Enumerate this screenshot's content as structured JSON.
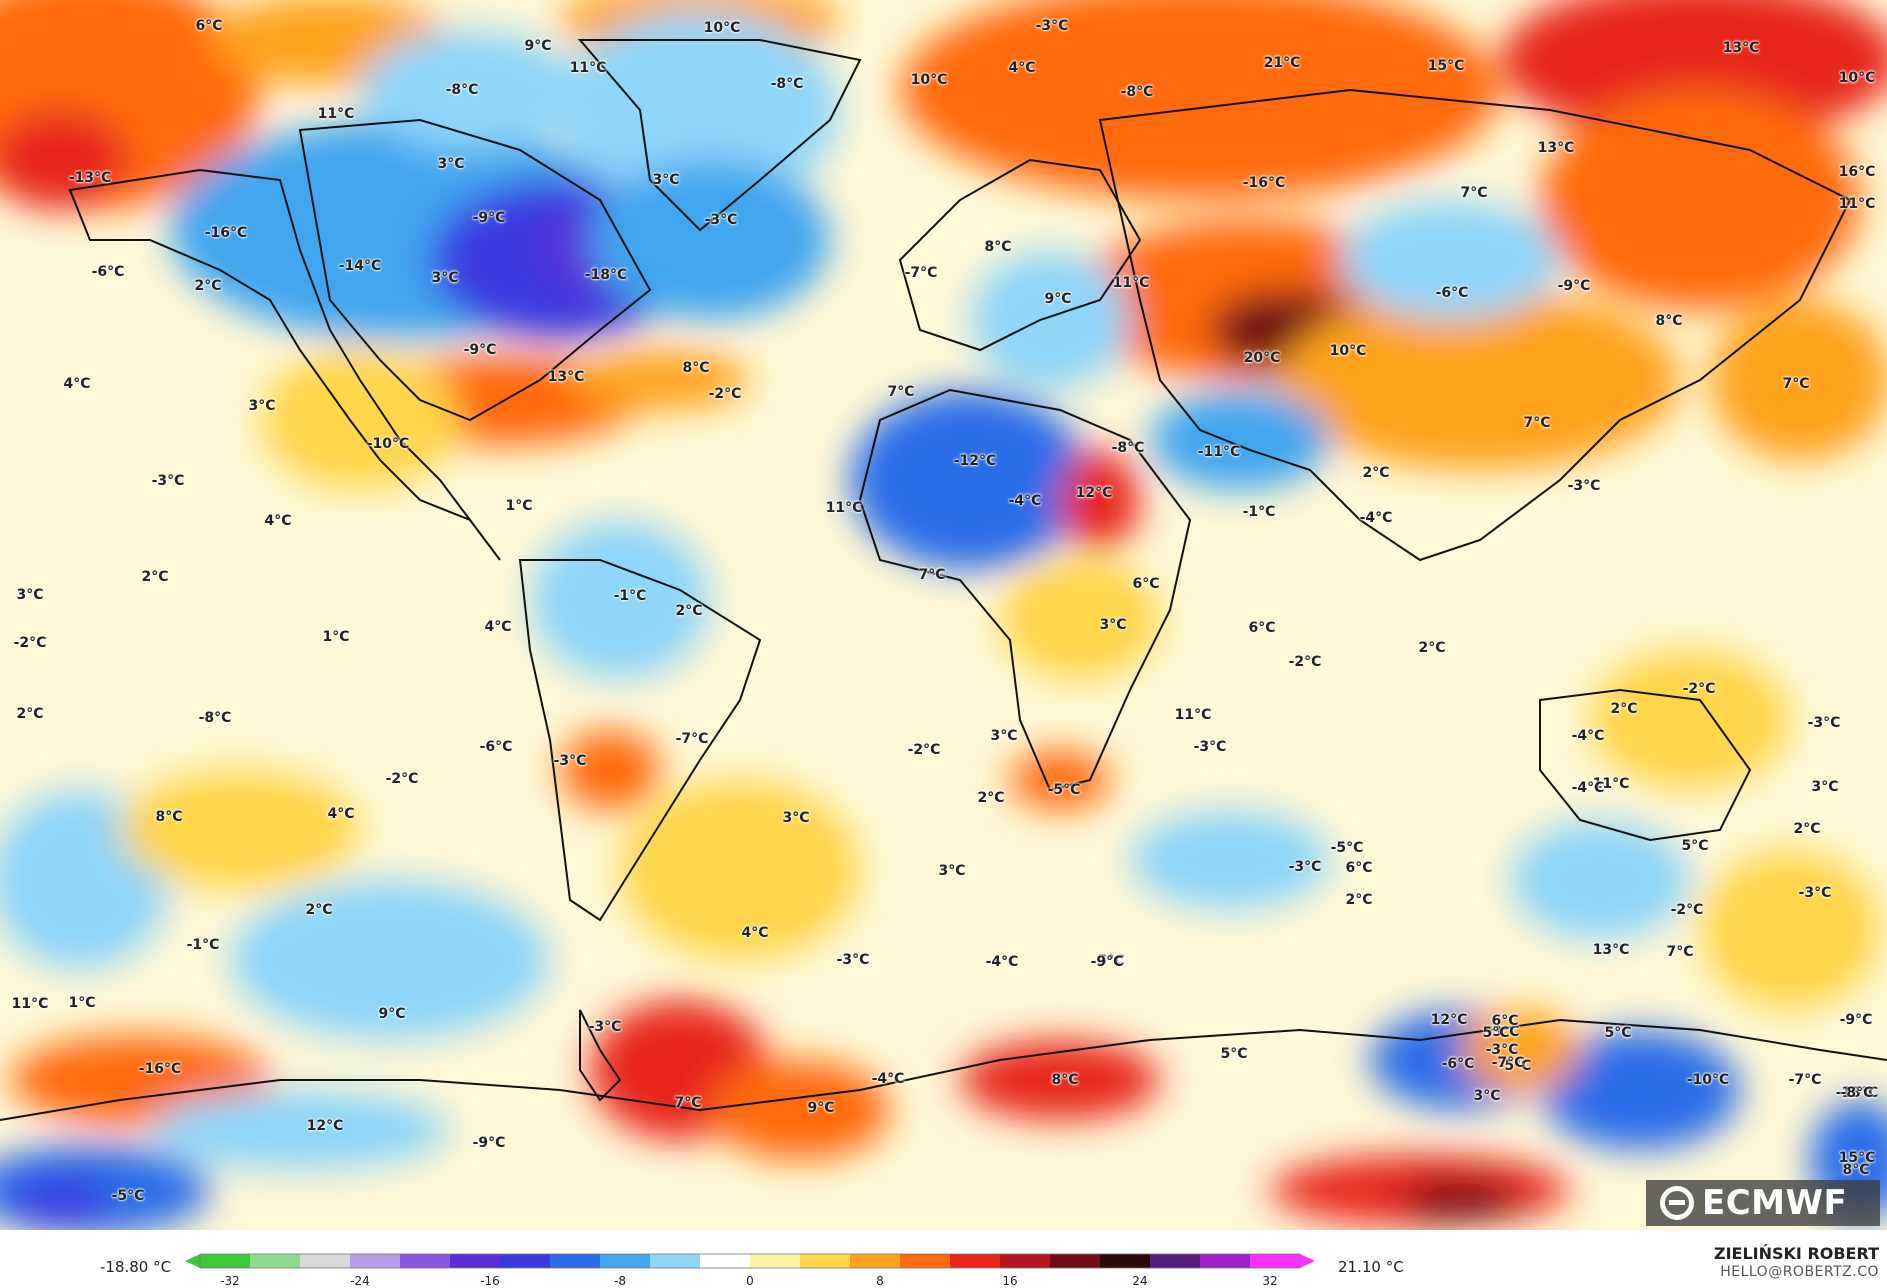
{
  "map": {
    "labels": [
      "6°C",
      "10°C",
      "-3°C",
      "9°C",
      "11°C",
      "-8°C",
      "-8°C",
      "10°C",
      "4°C",
      "21°C",
      "15°C",
      "13°C",
      "10°C",
      "11°C",
      "-8°C",
      "13°C",
      "3°C",
      "3°C",
      "-16°C",
      "-9°C",
      "7°C",
      "16°C",
      "11°C",
      "-3°C",
      "-13°C",
      "-16°C",
      "-14°C",
      "-18°C",
      "3°C",
      "-6°C",
      "2°C",
      "8°C",
      "11°C",
      "-7°C",
      "-6°C",
      "-9°C",
      "-9°C",
      "8°C",
      "8°C",
      "9°C",
      "20°C",
      "10°C",
      "4°C",
      "3°C",
      "-2°C",
      "7°C",
      "7°C",
      "13°C",
      "-10°C",
      "-12°C",
      "12°C",
      "-8°C",
      "-11°C",
      "7°C",
      "-3°C",
      "-3°C",
      "2°C",
      "4°C",
      "1°C",
      "-1°C",
      "-4°C",
      "3°C",
      "2°C",
      "11°C",
      "-4°C",
      "7°C",
      "6°C",
      "3°C",
      "1°C",
      "-2°C",
      "4°C",
      "2°C",
      "6°C",
      "2°C",
      "-2°C",
      "2°C",
      "-8°C",
      "-1°C",
      "-2°C",
      "-3°C",
      "2°C",
      "-6°C",
      "-7°C",
      "3°C",
      "-3°C",
      "11°C",
      "-3°C",
      "-5°C",
      "-2°C",
      "-2°C",
      "2°C",
      "11°C",
      "3°C",
      "8°C",
      "4°C",
      "3°C",
      "2°C",
      "-4°C",
      "-5°C",
      "-3°C",
      "5°C",
      "-4°C",
      "-3°C",
      "3°C",
      "6°C",
      "2°C",
      "4°C",
      "-2°C",
      "-1°C",
      "1°C",
      "2°C",
      "5°C",
      "-3°C",
      "-4°C",
      "-9°C",
      "7°C",
      "11°C",
      "9°C",
      "-3°C",
      "12°C",
      "5°C",
      "-3°C",
      "-5°C",
      "-16°C",
      "7°C",
      "9°C",
      "-4°C",
      "8°C",
      "12°C",
      "-9°C",
      "5°C",
      "-6°C",
      "-7°C",
      "-13°C",
      "6°C",
      "-9°C",
      "5°C",
      "3°C",
      "-8°C",
      "-3°C",
      "8°C",
      "-5°C",
      "15°C",
      "13°C",
      "-10°C",
      "-7°C"
    ],
    "logo_text": "ECMWF",
    "logo_icon": "ecmwf-logo-icon"
  },
  "legend": {
    "min_label": "-18.80 °C",
    "max_label": "21.10 °C",
    "ticks": [
      "-32",
      "-24",
      "-16",
      "-8",
      "0",
      "8",
      "16",
      "24",
      "32"
    ],
    "colors": [
      "#3ac93a",
      "#8fdc8f",
      "#d9d9d9",
      "#b59be8",
      "#8a55e0",
      "#5a2fd8",
      "#3a3ae0",
      "#2b6de8",
      "#41a6f0",
      "#8fd6f8",
      "#ffffff",
      "#fff3a8",
      "#ffd54a",
      "#ffa21a",
      "#ff6a10",
      "#e8261a",
      "#b5151a",
      "#6e0d14",
      "#2a0a0a",
      "#5a1a7a",
      "#a020c8",
      "#ff30ff"
    ]
  },
  "credit": {
    "name": "ZIELIŃSKI ROBERT",
    "email": "HELLO@ROBERTZ.CO"
  }
}
